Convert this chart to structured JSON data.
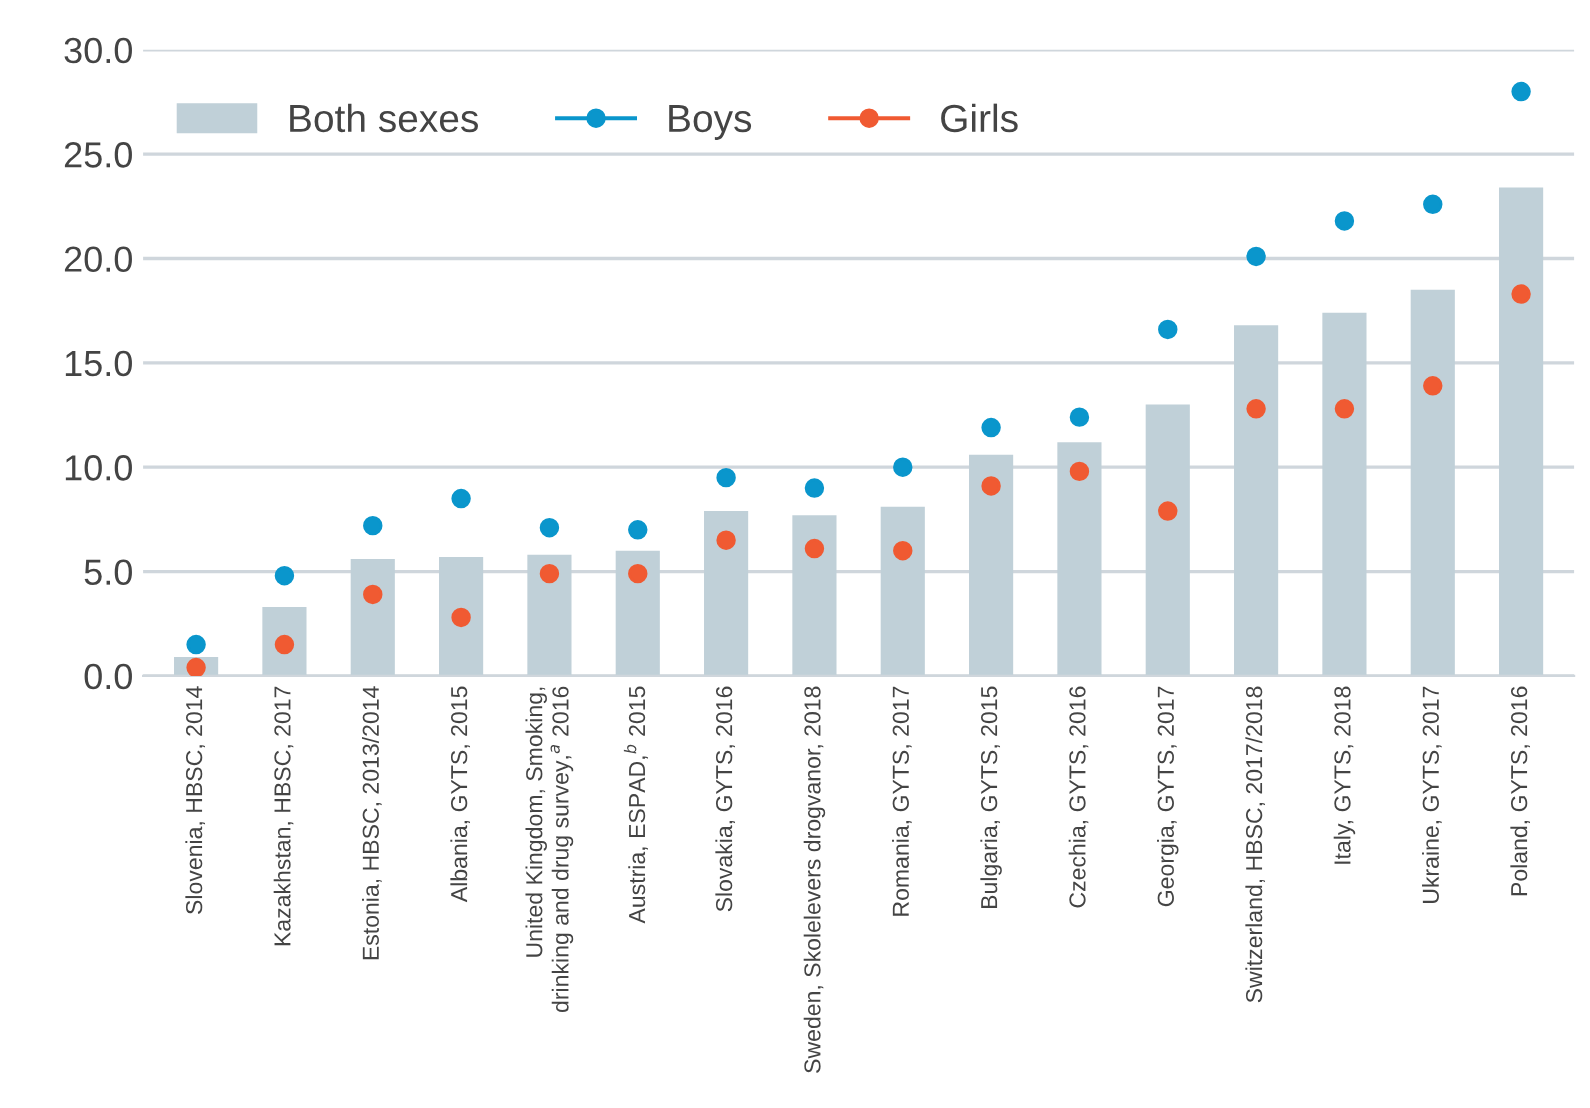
{
  "chart_data": {
    "type": "bar",
    "categories": [
      "Slovenia, HBSC, 2014",
      "Kazakhstan, HBSC, 2017",
      "Estonia, HBSC, 2013/2014",
      "Albania, GYTS, 2015",
      "United Kingdom, Smoking,\ndrinking and drug survey,$^{a}$ 2016",
      "Austria, ESPAD,$^{b}$ 2015",
      "Slovakia, GYTS, 2016",
      "Sweden, Skolelevers drogvanor, 2018",
      "Romania, GYTS, 2017",
      "Bulgaria, GYTS, 2015",
      "Czechia, GYTS, 2016",
      "Georgia, GYTS, 2017",
      "Switzerland, HBSC, 2017/2018",
      "Italy, GYTS, 2018",
      "Ukraine, GYTS, 2017",
      "Poland, GYTS, 2016"
    ],
    "series": [
      {
        "name": "Both sexes",
        "color": "#c0d0d8",
        "values": [
          0.9,
          3.3,
          5.6,
          5.7,
          5.8,
          6.0,
          7.9,
          7.7,
          8.1,
          10.6,
          11.2,
          13.0,
          16.8,
          17.4,
          18.5,
          23.4
        ]
      },
      {
        "name": "Boys",
        "type": "scatter",
        "color": "#0a96cc",
        "values": [
          1.5,
          4.8,
          7.2,
          8.5,
          7.1,
          7.0,
          9.5,
          9.0,
          10.0,
          11.9,
          12.4,
          16.6,
          20.1,
          21.8,
          22.6,
          28.0
        ]
      },
      {
        "name": "Girls",
        "type": "scatter",
        "color": "#f05a32",
        "values": [
          0.4,
          1.5,
          3.9,
          2.8,
          4.9,
          4.9,
          6.5,
          6.1,
          6.0,
          9.1,
          9.8,
          7.9,
          12.8,
          12.8,
          13.9,
          18.3
        ]
      }
    ],
    "ylim": [
      0,
      30
    ],
    "yticks": [
      {
        "value": 0,
        "label": "0.0"
      },
      {
        "value": 5,
        "label": "5.0"
      },
      {
        "value": 10,
        "label": "10.0"
      },
      {
        "value": 15,
        "label": "15.0"
      },
      {
        "value": 20,
        "label": "20.0"
      },
      {
        "value": 25,
        "label": "25.0"
      },
      {
        "value": 30,
        "label": "30.0"
      }
    ],
    "grid": "y",
    "legend": "top left",
    "marker": "circle"
  }
}
